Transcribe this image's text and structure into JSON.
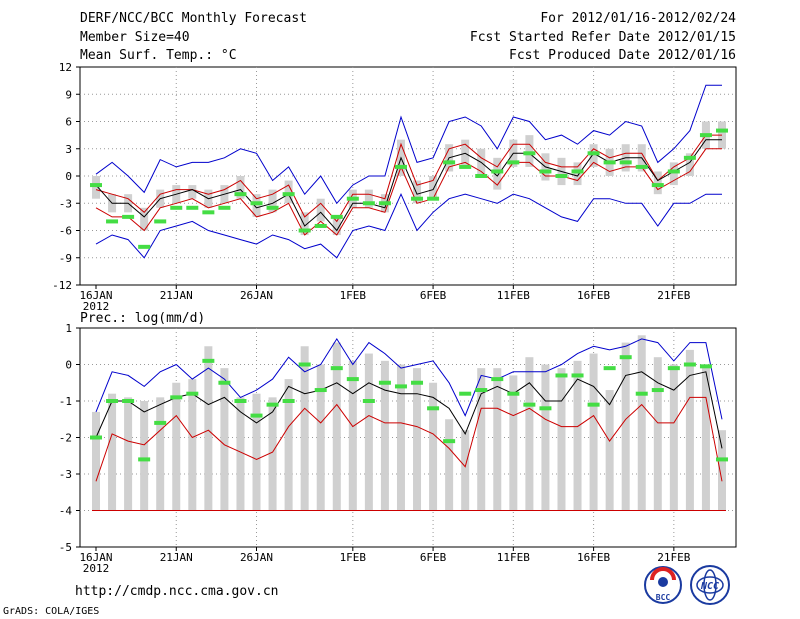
{
  "header": {
    "title": "DERF/NCC/BCC Monthly Forecast",
    "member_size": "Member Size=40",
    "variable_top": "Mean Surf. Temp.: °C",
    "forecast_period": "For 2012/01/16-2012/02/24",
    "start_date": "Fcst Started Refer Date 2012/01/15",
    "produced_date": "Fcst Produced Date 2012/01/16"
  },
  "footer": {
    "url": "http://cmdp.ncc.cma.gov.cn",
    "grads_credit": "GrADS: COLA/IGES",
    "logo_bcc": "BCC",
    "logo_ncc": "NCC"
  },
  "colors": {
    "mean_line": "#000000",
    "spread_upper": "#cc0000",
    "spread_lower": "#cc0000",
    "extreme": "#0000cc",
    "box": "#d0d0d0",
    "climatology": "#44dd44",
    "grid": "#999999"
  },
  "chart_data": [
    {
      "type": "line",
      "title": "Mean Surf. Temp.: °C",
      "x": [
        "Jan16",
        "Jan17",
        "Jan18",
        "Jan19",
        "Jan20",
        "Jan21",
        "Jan22",
        "Jan23",
        "Jan24",
        "Jan25",
        "Jan26",
        "Jan27",
        "Jan28",
        "Jan29",
        "Jan30",
        "Jan31",
        "Feb01",
        "Feb02",
        "Feb03",
        "Feb04",
        "Feb05",
        "Feb06",
        "Feb07",
        "Feb08",
        "Feb09",
        "Feb10",
        "Feb11",
        "Feb12",
        "Feb13",
        "Feb14",
        "Feb15",
        "Feb16",
        "Feb17",
        "Feb18",
        "Feb19",
        "Feb20",
        "Feb21",
        "Feb22",
        "Feb23",
        "Feb24"
      ],
      "x_tick_labels": [
        "16JAN\n2012",
        "21JAN",
        "26JAN",
        "1FEB",
        "6FEB",
        "11FEB",
        "16FEB",
        "21FEB"
      ],
      "ylim": [
        -12,
        12
      ],
      "yticks": [
        -12,
        -9,
        -6,
        -3,
        0,
        3,
        6,
        9,
        12
      ],
      "series": [
        {
          "name": "max",
          "color": "#0000cc",
          "values": [
            0.2,
            1.5,
            0.0,
            -1.8,
            1.8,
            1.0,
            1.5,
            1.5,
            2.0,
            3.0,
            2.5,
            -0.5,
            1.0,
            -2.0,
            0.0,
            -3.0,
            -1.0,
            0.0,
            0.0,
            6.5,
            1.5,
            2.0,
            6.0,
            6.5,
            5.5,
            3.0,
            6.5,
            6.0,
            4.0,
            4.5,
            3.5,
            5.0,
            4.5,
            6.0,
            5.5,
            1.5,
            3.0,
            5.0,
            10.0,
            10.0
          ]
        },
        {
          "name": "upper",
          "color": "#cc0000",
          "values": [
            -1.5,
            -2.0,
            -2.5,
            -4.0,
            -2.0,
            -1.5,
            -1.5,
            -2.0,
            -1.5,
            -0.5,
            -2.5,
            -2.0,
            -1.0,
            -4.5,
            -3.0,
            -5.0,
            -2.0,
            -2.0,
            -2.5,
            3.5,
            -1.0,
            -0.5,
            3.0,
            3.5,
            2.0,
            1.0,
            3.5,
            3.5,
            1.5,
            1.0,
            1.0,
            3.0,
            2.0,
            2.5,
            2.5,
            -0.5,
            1.0,
            2.0,
            4.5,
            4.5
          ]
        },
        {
          "name": "mean",
          "color": "#000000",
          "values": [
            -1.0,
            -3.0,
            -3.0,
            -4.5,
            -2.5,
            -2.0,
            -1.5,
            -2.5,
            -2.0,
            -1.5,
            -3.5,
            -3.0,
            -2.0,
            -5.5,
            -4.0,
            -6.0,
            -3.0,
            -3.0,
            -3.5,
            2.0,
            -2.0,
            -1.5,
            2.0,
            2.5,
            1.5,
            0.0,
            2.5,
            2.5,
            1.0,
            0.5,
            0.0,
            2.5,
            1.5,
            2.0,
            2.0,
            -0.5,
            0.5,
            1.5,
            4.0,
            4.0
          ]
        },
        {
          "name": "lower",
          "color": "#cc0000",
          "values": [
            -3.5,
            -4.5,
            -4.5,
            -6.0,
            -3.5,
            -3.0,
            -2.5,
            -3.5,
            -3.0,
            -2.5,
            -4.5,
            -4.0,
            -3.0,
            -6.5,
            -5.0,
            -6.5,
            -3.5,
            -3.5,
            -4.0,
            1.0,
            -3.0,
            -2.5,
            1.0,
            1.5,
            0.5,
            -1.0,
            1.5,
            1.5,
            0.0,
            0.0,
            -0.5,
            1.5,
            0.5,
            1.0,
            1.0,
            -1.5,
            -0.5,
            0.5,
            3.0,
            3.0
          ]
        },
        {
          "name": "min",
          "color": "#0000cc",
          "values": [
            -7.5,
            -6.5,
            -7.0,
            -9.0,
            -6.0,
            -5.5,
            -5.0,
            -6.0,
            -6.5,
            -7.0,
            -7.5,
            -6.5,
            -7.0,
            -8.0,
            -7.5,
            -9.0,
            -6.0,
            -5.5,
            -6.0,
            -2.0,
            -6.0,
            -4.0,
            -2.5,
            -2.0,
            -2.5,
            -3.0,
            -2.0,
            -2.5,
            -3.5,
            -4.5,
            -5.0,
            -2.5,
            -2.5,
            -3.0,
            -3.0,
            -5.5,
            -3.0,
            -3.0,
            -2.0,
            -2.0
          ]
        },
        {
          "name": "climatology",
          "color": "#44dd44",
          "values": [
            -1.0,
            -5.0,
            -4.5,
            -7.8,
            -5.0,
            -3.5,
            -3.5,
            -4.0,
            -3.5,
            -2.0,
            -3.0,
            -3.5,
            -2.0,
            -6.0,
            -5.5,
            -4.5,
            -2.5,
            -3.0,
            -3.0,
            1.0,
            -2.5,
            -2.5,
            1.5,
            1.0,
            0.0,
            0.5,
            1.5,
            2.5,
            0.5,
            0.0,
            0.5,
            2.5,
            1.5,
            1.5,
            1.0,
            -1.0,
            0.5,
            2.0,
            4.5,
            5.0
          ]
        }
      ],
      "boxes_lo": [
        -2.5,
        -4.0,
        -4.0,
        -6.0,
        -3.5,
        -3.0,
        -2.5,
        -3.5,
        -3.0,
        -2.5,
        -4.5,
        -4.0,
        -3.0,
        -6.5,
        -5.0,
        -6.5,
        -3.5,
        -3.5,
        -4.0,
        0.0,
        -3.0,
        -2.5,
        0.5,
        1.0,
        0.0,
        -1.5,
        1.0,
        1.0,
        -0.5,
        -1.0,
        -1.0,
        1.0,
        0.0,
        0.5,
        0.5,
        -2.0,
        -1.0,
        0.0,
        3.0,
        3.0
      ],
      "boxes_hi": [
        0.0,
        -2.0,
        -2.0,
        -3.5,
        -1.5,
        -1.0,
        -1.0,
        -1.5,
        -1.0,
        0.0,
        -2.0,
        -1.5,
        -0.5,
        -4.0,
        -2.5,
        -4.5,
        -1.5,
        -1.5,
        -2.0,
        4.0,
        -0.5,
        0.0,
        3.5,
        4.0,
        3.0,
        2.0,
        4.0,
        4.5,
        2.5,
        2.0,
        1.5,
        3.5,
        3.0,
        3.5,
        3.5,
        0.5,
        1.5,
        2.5,
        6.0,
        6.0
      ]
    },
    {
      "type": "line",
      "title": "Prec.: log(mm/d)",
      "x_tick_labels": [
        "16JAN\n2012",
        "21JAN",
        "26JAN",
        "1FEB",
        "6FEB",
        "11FEB",
        "16FEB",
        "21FEB"
      ],
      "ylim": [
        -5,
        1
      ],
      "yticks": [
        -5,
        -4,
        -3,
        -2,
        -1,
        0,
        1
      ],
      "series": [
        {
          "name": "max",
          "color": "#0000cc",
          "values": [
            -1.3,
            -0.2,
            -0.3,
            -0.6,
            -0.2,
            0.0,
            -0.4,
            -0.1,
            -0.4,
            -0.9,
            -0.7,
            -0.4,
            0.2,
            -0.2,
            0.0,
            0.7,
            0.0,
            0.6,
            0.3,
            -0.1,
            0.0,
            0.1,
            -0.5,
            -1.4,
            -0.3,
            -0.4,
            -0.2,
            -0.2,
            -0.2,
            0.0,
            0.3,
            0.5,
            0.4,
            0.5,
            0.7,
            0.6,
            0.1,
            0.6,
            0.6,
            -1.5
          ]
        },
        {
          "name": "mean",
          "color": "#000000",
          "values": [
            -2.0,
            -1.0,
            -1.0,
            -1.3,
            -1.1,
            -0.9,
            -0.8,
            -1.1,
            -0.9,
            -1.3,
            -1.6,
            -1.3,
            -0.6,
            -0.8,
            -0.7,
            -0.5,
            -0.8,
            -0.5,
            -0.7,
            -0.8,
            -0.8,
            -0.9,
            -1.2,
            -1.9,
            -0.8,
            -0.6,
            -0.8,
            -0.5,
            -1.0,
            -1.0,
            -0.4,
            -0.6,
            -1.1,
            -0.3,
            -0.2,
            -0.5,
            -0.7,
            -0.3,
            -0.2,
            -2.3
          ]
        },
        {
          "name": "p_lower",
          "color": "#cc0000",
          "values": [
            -3.2,
            -1.9,
            -2.1,
            -2.2,
            -1.8,
            -1.4,
            -2.0,
            -1.8,
            -2.2,
            -2.4,
            -2.6,
            -2.4,
            -1.7,
            -1.2,
            -1.6,
            -1.1,
            -1.7,
            -1.4,
            -1.6,
            -1.6,
            -1.7,
            -1.9,
            -2.3,
            -2.8,
            -1.2,
            -1.2,
            -1.4,
            -1.2,
            -1.5,
            -1.7,
            -1.7,
            -1.4,
            -2.1,
            -1.5,
            -1.1,
            -1.6,
            -1.6,
            -0.9,
            -0.9,
            -3.2
          ]
        },
        {
          "name": "climatology",
          "color": "#44dd44",
          "values": [
            -2.0,
            -1.0,
            -1.0,
            -2.6,
            -1.6,
            -0.9,
            -0.8,
            0.1,
            -0.5,
            -1.0,
            -1.4,
            -1.1,
            -1.0,
            0.0,
            -0.7,
            -0.1,
            -0.4,
            -1.0,
            -0.5,
            -0.6,
            -0.5,
            -1.2,
            -2.1,
            -0.8,
            -0.7,
            -0.4,
            -0.8,
            -1.1,
            -1.2,
            -0.3,
            -0.3,
            -1.1,
            -0.1,
            0.2,
            -0.8,
            -0.7,
            -0.1,
            0.0,
            -0.05,
            -2.6
          ]
        }
      ],
      "floor_value": -4,
      "boxes_lo": [
        -4,
        -4,
        -4,
        -4,
        -4,
        -4,
        -4,
        -4,
        -4,
        -4,
        -4,
        -4,
        -4,
        -4,
        -4,
        -4,
        -4,
        -4,
        -4,
        -4,
        -4,
        -4,
        -4,
        -4,
        -4,
        -4,
        -4,
        -4,
        -4,
        -4,
        -4,
        -4,
        -4,
        -4,
        -4,
        -4,
        -4,
        -4,
        -4,
        -4
      ],
      "boxes_hi": [
        -1.3,
        -0.8,
        -0.9,
        -1.0,
        -0.9,
        -0.5,
        -0.4,
        0.5,
        -0.1,
        -0.9,
        -0.8,
        -0.9,
        -0.4,
        0.5,
        0.0,
        0.6,
        0.1,
        0.3,
        0.1,
        0.0,
        -0.1,
        -0.5,
        -1.5,
        -1.8,
        -0.1,
        -0.1,
        -0.3,
        0.2,
        0.0,
        -0.1,
        0.1,
        0.3,
        -0.7,
        0.6,
        0.8,
        0.2,
        0.0,
        0.4,
        0.0,
        -1.8
      ]
    }
  ]
}
